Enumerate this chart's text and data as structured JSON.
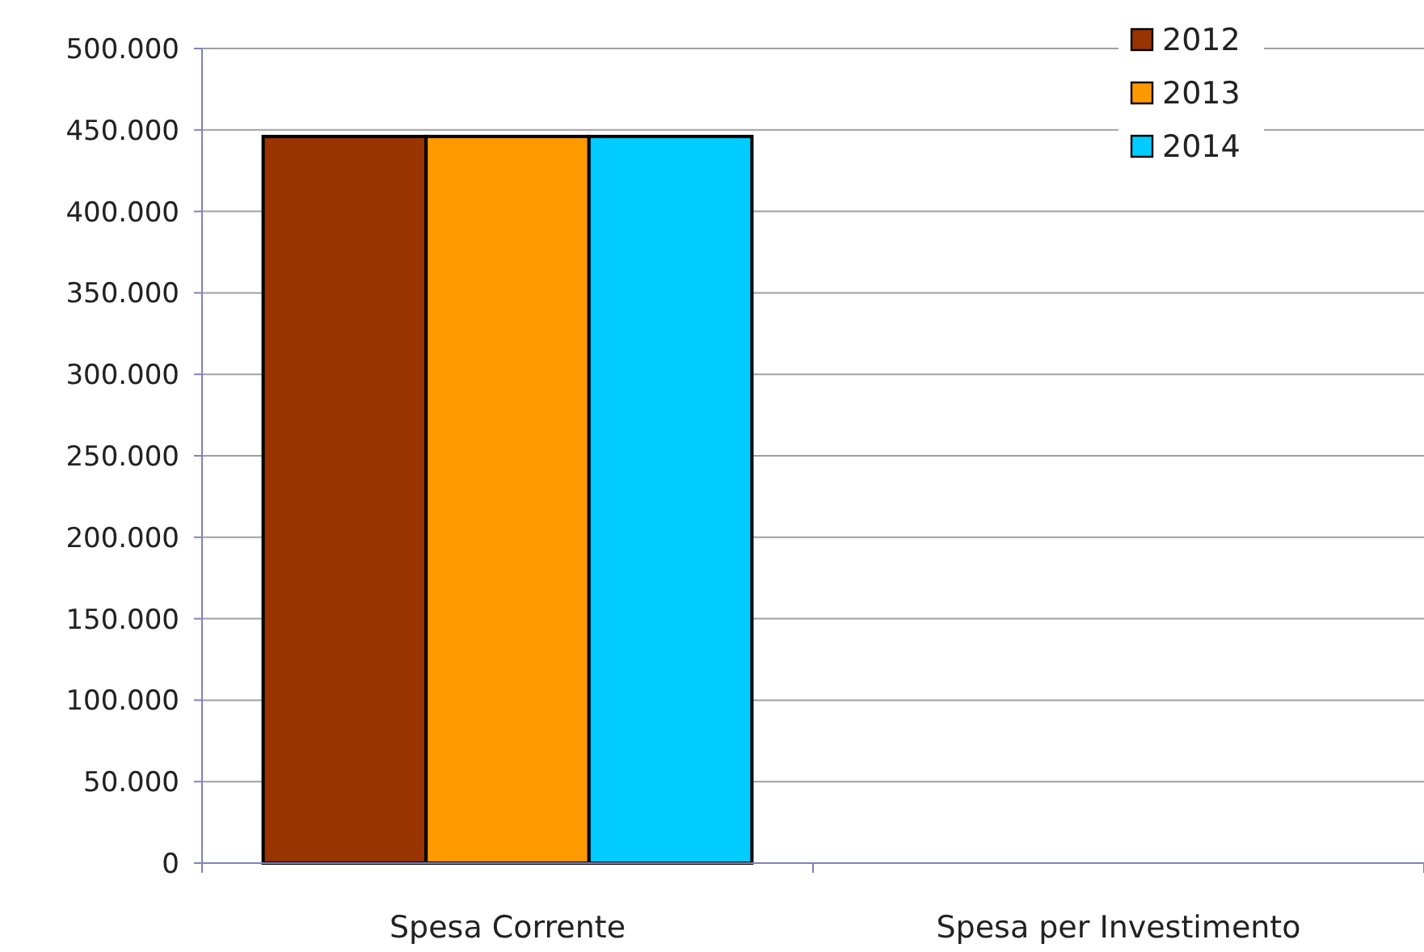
{
  "chart_data": {
    "type": "bar",
    "categories": [
      "Spesa Corrente",
      "Spesa per Investimento"
    ],
    "series": [
      {
        "name": "2012",
        "color": "#993300",
        "values": [
          446000,
          0
        ]
      },
      {
        "name": "2013",
        "color": "#ff9900",
        "values": [
          446000,
          0
        ]
      },
      {
        "name": "2014",
        "color": "#00ccff",
        "values": [
          446000,
          0
        ]
      }
    ],
    "ylim": [
      0,
      500000
    ],
    "yticks": [
      {
        "value": 0,
        "label": "0"
      },
      {
        "value": 50000,
        "label": "50.000"
      },
      {
        "value": 100000,
        "label": "100.000"
      },
      {
        "value": 150000,
        "label": "150.000"
      },
      {
        "value": 200000,
        "label": "200.000"
      },
      {
        "value": 250000,
        "label": "250.000"
      },
      {
        "value": 300000,
        "label": "300.000"
      },
      {
        "value": 350000,
        "label": "350.000"
      },
      {
        "value": 400000,
        "label": "400.000"
      },
      {
        "value": 450000,
        "label": "450.000"
      },
      {
        "value": 500000,
        "label": "500.000"
      }
    ],
    "grid": "y",
    "legend": "top right"
  }
}
